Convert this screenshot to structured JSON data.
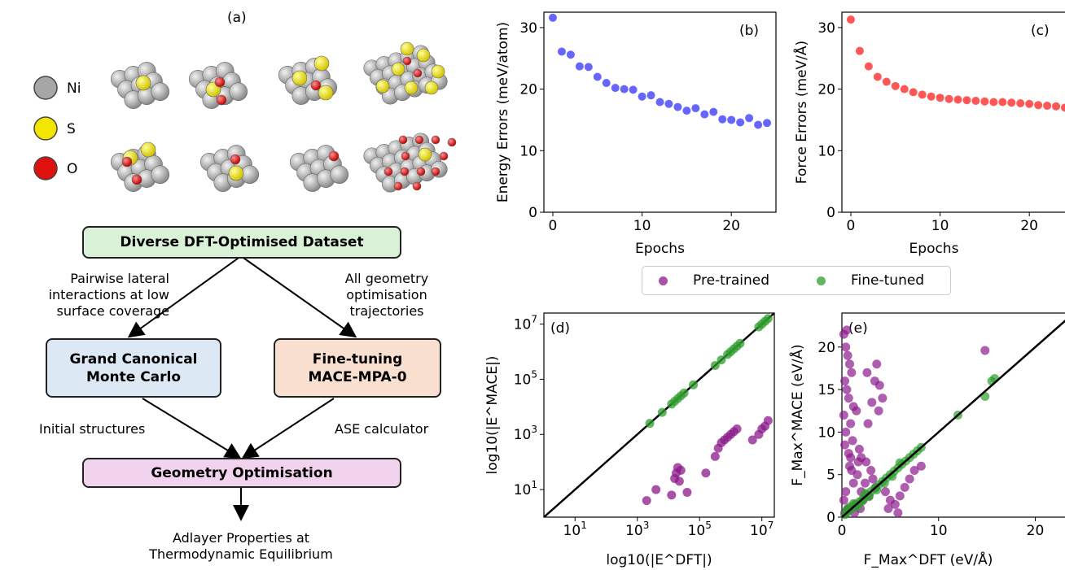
{
  "panel_a": {
    "label": "(a)",
    "legend": [
      {
        "name": "Ni",
        "color": "#a6a6a6"
      },
      {
        "name": "S",
        "color": "#f2e600"
      },
      {
        "name": "O",
        "color": "#e01010"
      }
    ]
  },
  "flowchart": {
    "top": "Diverse DFT-Optimised Dataset",
    "left_box": [
      "Grand Canonical",
      "Monte Carlo"
    ],
    "right_box": [
      "Fine-tuning",
      "MACE-MPA-0"
    ],
    "bottom_box": "Geometry Optimisation",
    "left_arrow_label": [
      "Pairwise lateral",
      "interactions at low",
      "surface coverage"
    ],
    "right_arrow_label": [
      "All geometry",
      "optimisation",
      "trajectories"
    ],
    "initial_label": "Initial structures",
    "ase_label": "ASE calculator",
    "output": [
      "Adlayer Properties at",
      "Thermodynamic Equilibrium"
    ]
  },
  "colors": {
    "pretrained": "#8b1a8b",
    "finetuned": "#2e9e2e",
    "energy": "#5555ff",
    "force": "#ff4444"
  },
  "legend": {
    "pretrained": "Pre-trained",
    "finetuned": "Fine-tuned"
  },
  "chart_data": [
    {
      "type": "scatter",
      "panel": "(b)",
      "xlabel": "Epochs",
      "ylabel": "Energy Errors (meV/atom)",
      "xlim": [
        -1,
        25
      ],
      "ylim": [
        0,
        32.5
      ],
      "xticks": [
        0,
        10,
        20
      ],
      "yticks": [
        0,
        10,
        20,
        30
      ],
      "x": [
        0,
        1,
        2,
        3,
        4,
        5,
        6,
        7,
        8,
        9,
        10,
        11,
        12,
        13,
        14,
        15,
        16,
        17,
        18,
        19,
        20,
        21,
        22,
        23,
        24
      ],
      "y": [
        31.6,
        26.1,
        25.6,
        23.7,
        23.6,
        22.0,
        21.0,
        20.2,
        20.0,
        19.9,
        18.8,
        19.0,
        17.9,
        17.6,
        17.1,
        16.5,
        16.9,
        15.9,
        16.3,
        15.1,
        15.0,
        14.6,
        15.3,
        14.2,
        14.5
      ]
    },
    {
      "type": "scatter",
      "panel": "(c)",
      "xlabel": "Epochs",
      "ylabel": "Force Errors (meV/Å)",
      "xlim": [
        -1,
        25
      ],
      "ylim": [
        0,
        32.5
      ],
      "xticks": [
        0,
        10,
        20
      ],
      "yticks": [
        0,
        10,
        20,
        30
      ],
      "x": [
        0,
        1,
        2,
        3,
        4,
        5,
        6,
        7,
        8,
        9,
        10,
        11,
        12,
        13,
        14,
        15,
        16,
        17,
        18,
        19,
        20,
        21,
        22,
        23,
        24
      ],
      "y": [
        31.3,
        26.2,
        23.7,
        22.0,
        21.2,
        20.5,
        20.0,
        19.5,
        19.1,
        18.8,
        18.6,
        18.4,
        18.3,
        18.2,
        18.1,
        18.0,
        17.9,
        17.9,
        17.8,
        17.7,
        17.6,
        17.4,
        17.3,
        17.2,
        17.0
      ]
    },
    {
      "type": "scatter",
      "panel": "(d)",
      "xlabel": "log10(|E^DFT|)",
      "ylabel": "log10(|E^MACE|)",
      "scale": "log",
      "xlim_log10": [
        0,
        7.4
      ],
      "ylim_log10": [
        0,
        7.4
      ],
      "xticks_log10": [
        1,
        3,
        5,
        7
      ],
      "yticks_log10": [
        1,
        3,
        5,
        7
      ],
      "series": [
        {
          "name": "Pre-trained",
          "x_log10": [
            3.3,
            3.6,
            4.1,
            4.2,
            4.25,
            4.3,
            4.35,
            4.4,
            4.6,
            5.2,
            5.5,
            5.6,
            5.7,
            5.8,
            5.9,
            6.0,
            6.1,
            6.2,
            6.7,
            6.9,
            7.0,
            7.1,
            7.2
          ],
          "y_log10": [
            0.6,
            1.0,
            0.8,
            1.4,
            1.6,
            1.8,
            1.3,
            1.7,
            0.9,
            1.6,
            2.2,
            2.5,
            2.7,
            2.8,
            2.9,
            3.0,
            3.1,
            3.2,
            2.8,
            3.0,
            3.2,
            3.3,
            3.5
          ]
        },
        {
          "name": "Fine-tuned",
          "x_log10": [
            3.4,
            3.8,
            4.1,
            4.2,
            4.3,
            4.4,
            4.5,
            4.8,
            5.5,
            5.7,
            5.9,
            6.0,
            6.1,
            6.2,
            6.3,
            6.9,
            7.0,
            7.1,
            7.2
          ],
          "y_log10": [
            3.4,
            3.8,
            4.1,
            4.2,
            4.3,
            4.4,
            4.5,
            4.8,
            5.5,
            5.7,
            5.9,
            6.0,
            6.1,
            6.2,
            6.3,
            6.9,
            7.0,
            7.1,
            7.2
          ]
        }
      ]
    },
    {
      "type": "scatter",
      "panel": "(e)",
      "xlabel": "F_Max^DFT (eV/Å)",
      "ylabel": "F_Max^MACE (eV/Å)",
      "xlim": [
        0,
        24
      ],
      "ylim": [
        0,
        24
      ],
      "xticks": [
        0,
        10,
        20
      ],
      "yticks": [
        0,
        5,
        10,
        15,
        20
      ],
      "series": [
        {
          "name": "Pre-trained",
          "x": [
            0.2,
            0.4,
            0.6,
            0.8,
            1.0,
            0.3,
            0.5,
            0.7,
            1.2,
            1.5,
            0.2,
            0.9,
            0.4,
            1.1,
            1.8,
            2.0,
            2.5,
            3.0,
            3.2,
            3.5,
            2.8,
            2.2,
            1.4,
            0.6,
            0.3,
            0.8,
            1.6,
            2.4,
            3.6,
            3.9,
            4.2,
            4.5,
            5.0,
            5.5,
            6.0,
            6.5,
            7.0,
            7.5,
            8.2,
            14.8,
            0.5,
            0.3,
            0.7,
            1.0,
            2.6,
            3.4,
            3.1,
            2.0,
            1.2,
            0.4,
            0.2,
            0.6,
            1.3,
            1.9,
            4.8,
            5.8,
            0.9,
            2.7,
            3.8,
            1.7
          ],
          "y": [
            21.5,
            20.0,
            19.0,
            18.0,
            17.0,
            16.0,
            15.0,
            14.0,
            13.0,
            12.5,
            12.0,
            11.0,
            10.0,
            9.0,
            8.0,
            7.0,
            6.5,
            5.5,
            4.5,
            3.5,
            2.5,
            2.0,
            1.5,
            1.0,
            0.5,
            6.0,
            5.0,
            4.0,
            18.0,
            15.5,
            14.0,
            3.0,
            2.0,
            1.5,
            2.5,
            3.5,
            4.5,
            5.5,
            6.0,
            19.6,
            22.0,
            8.5,
            7.5,
            5.5,
            17.0,
            16.0,
            13.5,
            3.0,
            4.0,
            3.0,
            2.0,
            0.8,
            0.5,
            1.0,
            1.0,
            0.5,
            7.0,
            11.0,
            12.5,
            6.5
          ]
        },
        {
          "name": "Fine-tuned",
          "x": [
            0.3,
            0.6,
            1.0,
            1.4,
            1.8,
            2.2,
            2.6,
            3.0,
            3.4,
            3.8,
            4.2,
            4.6,
            5.0,
            5.4,
            5.8,
            6.2,
            6.6,
            7.0,
            7.4,
            7.8,
            8.2,
            12.0,
            14.8,
            15.5,
            15.8,
            0.5,
            1.2,
            2.0,
            2.8,
            3.6,
            4.4,
            5.2,
            6.0,
            0.8,
            1.6,
            2.4
          ],
          "y": [
            0.3,
            0.6,
            1.0,
            1.4,
            1.8,
            2.2,
            2.6,
            3.0,
            3.4,
            3.8,
            4.2,
            4.6,
            5.0,
            5.4,
            5.8,
            6.2,
            6.6,
            7.0,
            7.4,
            7.8,
            8.2,
            12.0,
            14.2,
            16.0,
            16.3,
            0.8,
            1.6,
            1.8,
            2.4,
            3.2,
            4.0,
            4.8,
            6.4,
            1.2,
            1.2,
            2.8
          ]
        }
      ]
    }
  ]
}
